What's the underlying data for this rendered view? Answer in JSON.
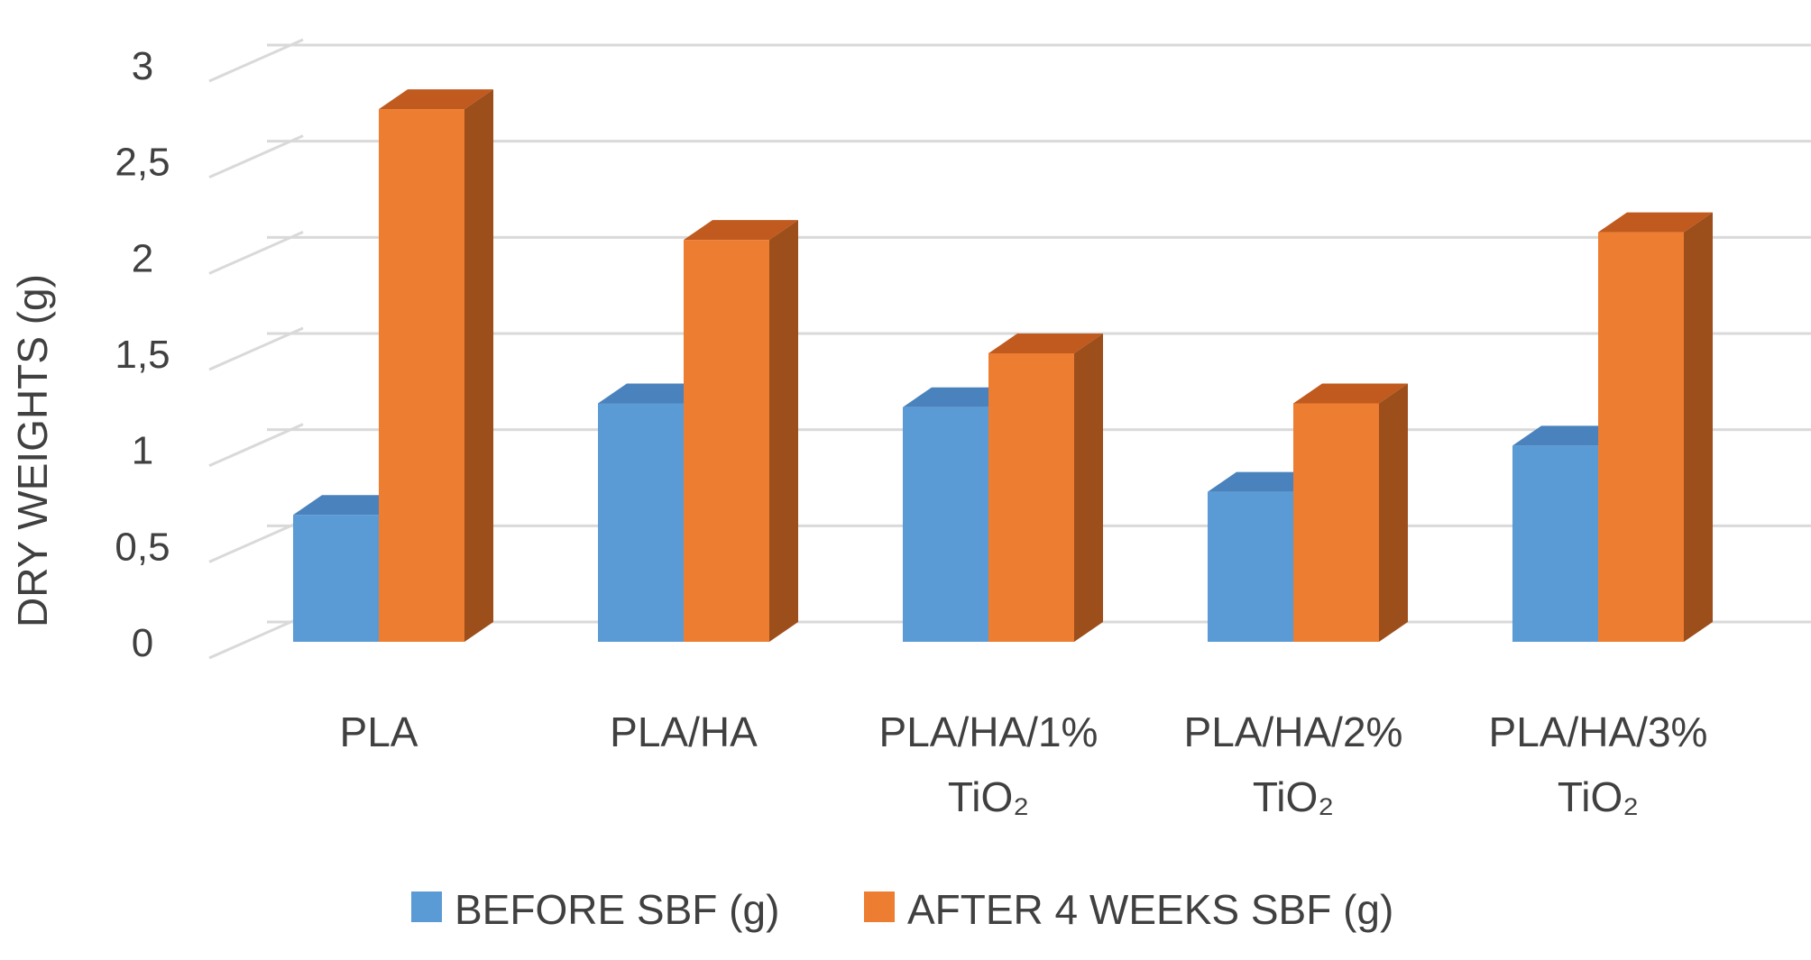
{
  "chart_data": {
    "type": "bar",
    "style": "3d-clustered-column",
    "ylabel": "DRY WEIGHTS (g)",
    "xlabel": "",
    "ylim": [
      0,
      3
    ],
    "yticks": [
      "0",
      "0,5",
      "1",
      "1,5",
      "2",
      "2,5",
      "3"
    ],
    "ytick_values": [
      0,
      0.5,
      1,
      1.5,
      2,
      2.5,
      3
    ],
    "grid": true,
    "legend_position": "bottom",
    "categories": [
      {
        "line1": "PLA",
        "line2": ""
      },
      {
        "line1": "PLA/HA",
        "line2": ""
      },
      {
        "line1": "PLA/HA/1%",
        "line2": "TiO₂"
      },
      {
        "line1": "PLA/HA/2%",
        "line2": "TiO₂"
      },
      {
        "line1": "PLA/HA/3%",
        "line2": "TiO₂"
      }
    ],
    "series": [
      {
        "name": "BEFORE SBF (g)",
        "color": "#5b9bd5",
        "side_color": "#3a70a8",
        "top_color": "#4a82bd",
        "values": [
          0.66,
          1.24,
          1.22,
          0.78,
          1.02
        ]
      },
      {
        "name": "AFTER 4 WEEKS SBF (g)",
        "color": "#ed7d31",
        "side_color": "#9c4e1b",
        "top_color": "#c05a1e",
        "values": [
          2.77,
          2.09,
          1.5,
          1.24,
          2.13
        ]
      }
    ]
  }
}
